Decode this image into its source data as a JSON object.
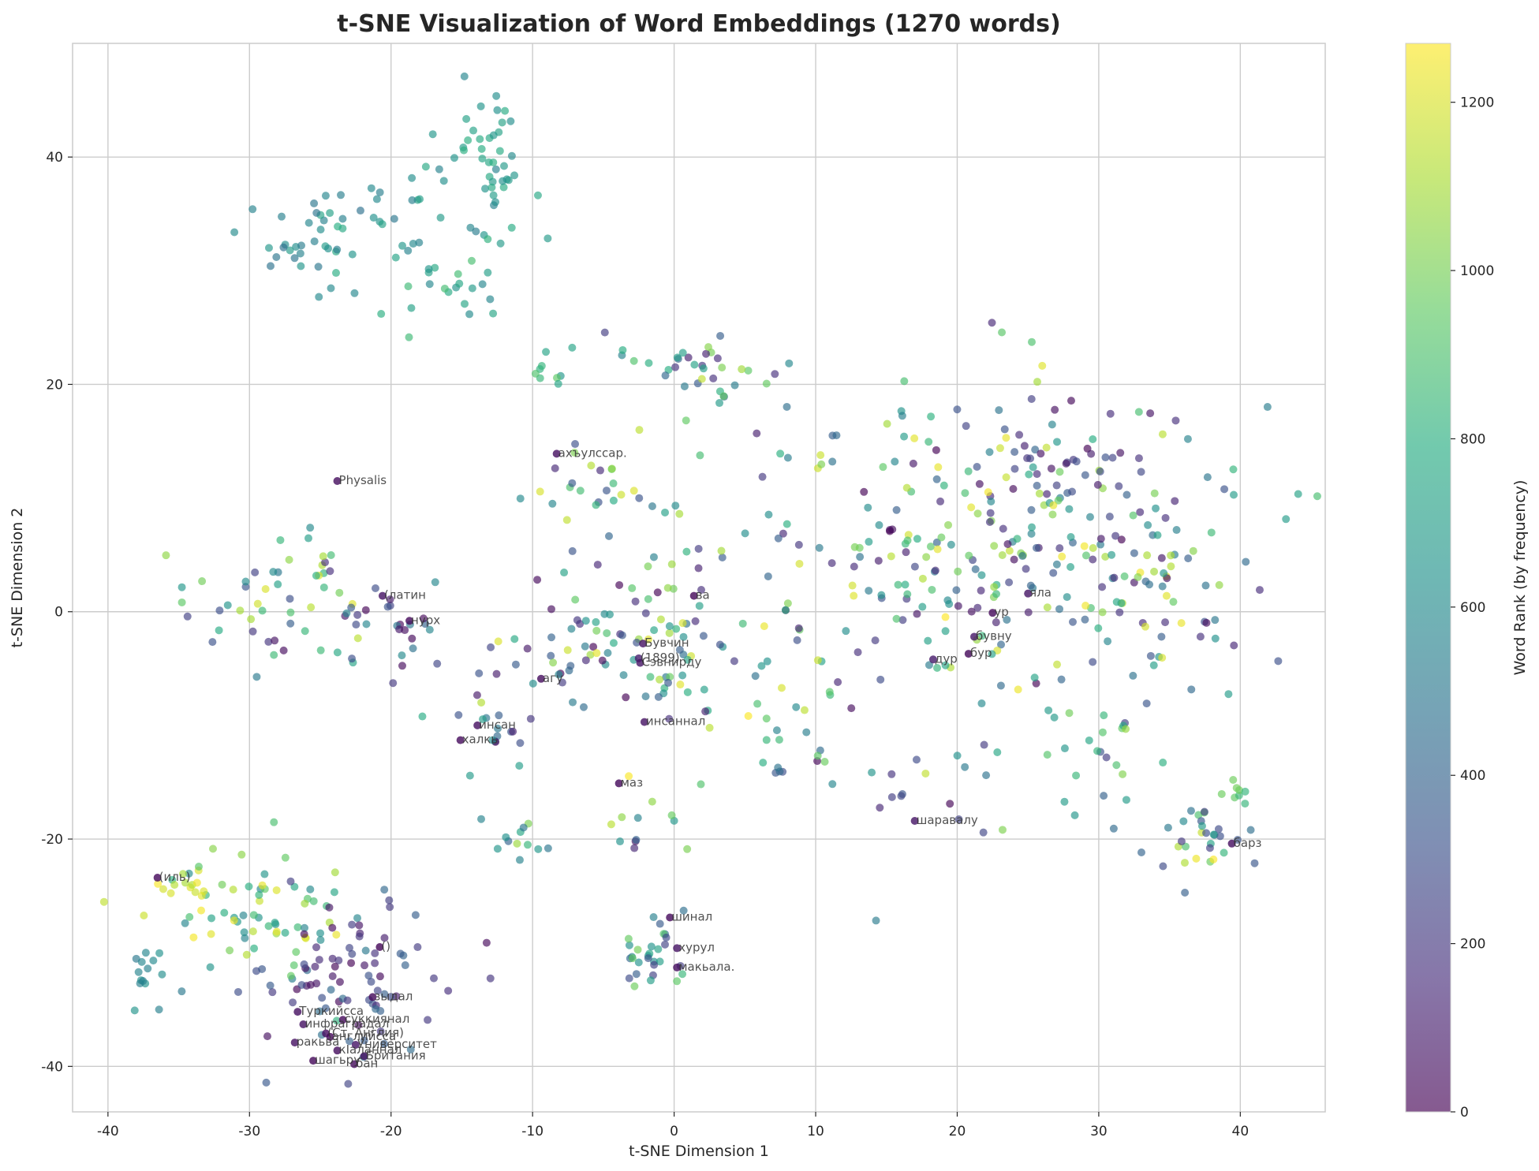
{
  "chart_data": {
    "type": "scatter",
    "title": "t-SNE Visualization of Word Embeddings (1270 words)",
    "xlabel": "t-SNE Dimension 1",
    "ylabel": "t-SNE Dimension 2",
    "xlim": [
      -42.5,
      46
    ],
    "ylim": [
      -44,
      50
    ],
    "x_ticks": [
      -40,
      -30,
      -20,
      -10,
      0,
      10,
      20,
      30,
      40
    ],
    "y_ticks": [
      -40,
      -20,
      0,
      20,
      40
    ],
    "x_tick_labels": [
      "-40",
      "-30",
      "-20",
      "-10",
      "0",
      "10",
      "20",
      "30",
      "40"
    ],
    "y_tick_labels": [
      "-40",
      "-20",
      "0",
      "20",
      "40"
    ],
    "grid": true,
    "colormap": "viridis",
    "point_alpha": 0.65,
    "colorbar": {
      "label": "Word Rank (by frequency)",
      "range": [
        0,
        1270
      ],
      "ticks": [
        0,
        200,
        400,
        600,
        800,
        1000,
        1200
      ],
      "tick_labels": [
        "0",
        "200",
        "400",
        "600",
        "800",
        "1000",
        "1200"
      ]
    },
    "clusters": [
      {
        "cx": -14,
        "cy": 40,
        "sx": 2.2,
        "sy": 3.5,
        "n": 25,
        "rmin": 550,
        "rmax": 800
      },
      {
        "cx": -24,
        "cy": 33,
        "sx": 4,
        "sy": 2.2,
        "n": 55,
        "rmin": 450,
        "rmax": 800
      },
      {
        "cx": -16,
        "cy": 29,
        "sx": 3,
        "sy": 2,
        "n": 25,
        "rmin": 550,
        "rmax": 900
      },
      {
        "cx": -12.5,
        "cy": 41,
        "sx": 1,
        "sy": 4,
        "n": 20,
        "rmin": 600,
        "rmax": 800
      },
      {
        "cx": 1.5,
        "cy": 21.5,
        "sx": 2.5,
        "sy": 1.5,
        "n": 35,
        "rmin": 100,
        "rmax": 1270
      },
      {
        "cx": -9,
        "cy": 21.5,
        "sx": 1,
        "sy": 0.6,
        "n": 8,
        "rmin": 650,
        "rmax": 950
      },
      {
        "cx": -5,
        "cy": 11,
        "sx": 2.5,
        "sy": 1.8,
        "n": 25,
        "rmin": 100,
        "rmax": 1270
      },
      {
        "cx": 20,
        "cy": 5,
        "sx": 10,
        "sy": 8,
        "n": 280,
        "rmin": 0,
        "rmax": 1270
      },
      {
        "cx": 35,
        "cy": 0,
        "sx": 4,
        "sy": 4,
        "n": 40,
        "rmin": 0,
        "rmax": 1270
      },
      {
        "cx": -3,
        "cy": -3,
        "sx": 5,
        "sy": 4,
        "n": 110,
        "rmin": 0,
        "rmax": 1270
      },
      {
        "cx": -27,
        "cy": 1,
        "sx": 4,
        "sy": 3,
        "n": 55,
        "rmin": 0,
        "rmax": 1270
      },
      {
        "cx": -13,
        "cy": -11,
        "sx": 2,
        "sy": 2,
        "n": 15,
        "rmin": 0,
        "rmax": 700
      },
      {
        "cx": -10.5,
        "cy": -20,
        "sx": 1.5,
        "sy": 1.2,
        "n": 12,
        "rmin": 400,
        "rmax": 1100
      },
      {
        "cx": -2.5,
        "cy": -19,
        "sx": 1.5,
        "sy": 2,
        "n": 12,
        "rmin": 0,
        "rmax": 1270
      },
      {
        "cx": -1.5,
        "cy": -30,
        "sx": 1.3,
        "sy": 1.8,
        "n": 30,
        "rmin": 200,
        "rmax": 1000
      },
      {
        "cx": 8,
        "cy": -11,
        "sx": 2.5,
        "sy": 2,
        "n": 15,
        "rmin": 300,
        "rmax": 1100
      },
      {
        "cx": 17,
        "cy": -16,
        "sx": 3,
        "sy": 2,
        "n": 15,
        "rmin": 0,
        "rmax": 1270
      },
      {
        "cx": 30,
        "cy": -13,
        "sx": 3,
        "sy": 3,
        "n": 25,
        "rmin": 200,
        "rmax": 1100
      },
      {
        "cx": 37,
        "cy": -20,
        "sx": 2,
        "sy": 1.5,
        "n": 30,
        "rmin": 200,
        "rmax": 1270
      },
      {
        "cx": 40,
        "cy": -16,
        "sx": 0.8,
        "sy": 1,
        "n": 8,
        "rmin": 800,
        "rmax": 1000
      },
      {
        "cx": -29,
        "cy": -26,
        "sx": 3,
        "sy": 3,
        "n": 70,
        "rmin": 500,
        "rmax": 1270
      },
      {
        "cx": -23,
        "cy": -32,
        "sx": 3,
        "sy": 4,
        "n": 80,
        "rmin": 0,
        "rmax": 500
      },
      {
        "cx": -34,
        "cy": -24,
        "sx": 1,
        "sy": 0.8,
        "n": 12,
        "rmin": 1100,
        "rmax": 1270
      },
      {
        "cx": -37.5,
        "cy": -32,
        "sx": 1,
        "sy": 1.2,
        "n": 15,
        "rmin": 500,
        "rmax": 650
      },
      {
        "cx": -20,
        "cy": -1,
        "sx": 2,
        "sy": 2,
        "n": 20,
        "rmin": 0,
        "rmax": 600
      },
      {
        "cx": 27,
        "cy": 12,
        "sx": 4,
        "sy": 3,
        "n": 40,
        "rmin": 0,
        "rmax": 400
      }
    ],
    "labeled_points": [
      {
        "x": -8.3,
        "y": 13.9,
        "label": "ахъулссар.",
        "rank": 50
      },
      {
        "x": -23.8,
        "y": 11.5,
        "label": "Physalis",
        "rank": 40
      },
      {
        "x": -20.6,
        "y": 1.4,
        "label": "(латин",
        "rank": 60
      },
      {
        "x": -18.7,
        "y": -0.8,
        "label": "нурх",
        "rank": 30
      },
      {
        "x": 1.4,
        "y": 1.4,
        "label": "ва",
        "rank": 20
      },
      {
        "x": 25,
        "y": 1.6,
        "label": "яла",
        "rank": 70
      },
      {
        "x": 22.5,
        "y": -0.1,
        "label": "ур",
        "rank": 30
      },
      {
        "x": 21.2,
        "y": -2.2,
        "label": "бувну",
        "rank": 80
      },
      {
        "x": 20.8,
        "y": -3.7,
        "label": "бур",
        "rank": 20
      },
      {
        "x": 18.3,
        "y": -4.2,
        "label": "дур",
        "rank": 90
      },
      {
        "x": -2.2,
        "y": -2.8,
        "label": "Бувчин",
        "rank": 60
      },
      {
        "x": -2.5,
        "y": -4.1,
        "label": "(1899)",
        "rank": 100
      },
      {
        "x": -2.4,
        "y": -4.5,
        "label": "Сэвнирду",
        "rank": 70
      },
      {
        "x": -9.4,
        "y": -5.9,
        "label": "агу",
        "rank": 40
      },
      {
        "x": -13.9,
        "y": -10,
        "label": "инсан",
        "rank": 50
      },
      {
        "x": -15.1,
        "y": -11.3,
        "label": "халкь",
        "rank": 35
      },
      {
        "x": -2.1,
        "y": -9.7,
        "label": "инсаннал",
        "rank": 60
      },
      {
        "x": -3.9,
        "y": -15.1,
        "label": "маз",
        "rank": 25
      },
      {
        "x": 17,
        "y": -18.4,
        "label": "шаравалу",
        "rank": 70
      },
      {
        "x": 39.4,
        "y": -20.4,
        "label": "барз",
        "rank": 45
      },
      {
        "x": -36.5,
        "y": -23.4,
        "label": "(иль)",
        "rank": 25
      },
      {
        "x": -0.3,
        "y": -26.9,
        "label": "шинал",
        "rank": 30
      },
      {
        "x": -20.8,
        "y": -29.5,
        "label": "()",
        "rank": 15
      },
      {
        "x": 0.2,
        "y": -29.6,
        "label": "хурул",
        "rank": 60
      },
      {
        "x": 0.2,
        "y": -31.3,
        "label": "макьала.",
        "rank": 40
      },
      {
        "x": -21.3,
        "y": -33.9,
        "label": "зыдал",
        "rank": 20
      },
      {
        "x": -26.6,
        "y": -35.2,
        "label": "Туркийсса",
        "rank": 50
      },
      {
        "x": -23.4,
        "y": -35.9,
        "label": "суккиянал",
        "rank": 30
      },
      {
        "x": -26.2,
        "y": -36.3,
        "label": "инфраградал",
        "rank": 60
      },
      {
        "x": -24.6,
        "y": -37.1,
        "label": "(Ст. Англия)",
        "rank": 45
      },
      {
        "x": -26.8,
        "y": -37.9,
        "label": "ракьва",
        "rank": 55
      },
      {
        "x": -24.3,
        "y": -37.4,
        "label": "английсса",
        "rank": 25
      },
      {
        "x": -22.5,
        "y": -38.1,
        "label": "Университет",
        "rank": 70
      },
      {
        "x": -23.8,
        "y": -38.6,
        "label": "кIаланнал",
        "rank": 40
      },
      {
        "x": -21.9,
        "y": -39.1,
        "label": "Британия",
        "rank": 50
      },
      {
        "x": -25.5,
        "y": -39.5,
        "label": "шагьру",
        "rank": 20
      },
      {
        "x": -22.6,
        "y": -39.8,
        "label": "бан",
        "rank": 35
      }
    ]
  }
}
